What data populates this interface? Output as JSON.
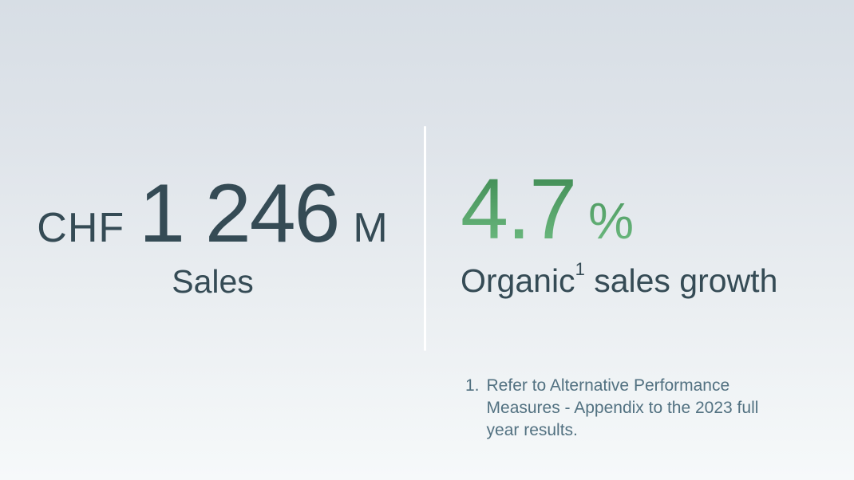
{
  "slide": {
    "background_top": "#d7dee5",
    "background_bottom": "#f6f9fa",
    "divider_color": "#ffffff",
    "primary_text_color": "#354b55",
    "accent_green_top": "#3e8952",
    "accent_green_bottom": "#6fbd82",
    "footnote_color": "#527181"
  },
  "stats": {
    "left": {
      "currency": "CHF",
      "value": "1 246",
      "unit": "M",
      "label": "Sales"
    },
    "right": {
      "value": "4.7",
      "unit": "%",
      "label_text": "Organic",
      "label_superscript": "1",
      "label_suffix": " sales growth"
    }
  },
  "footnote": {
    "marker": "1.",
    "lines": [
      "Refer to Alternative Performance",
      "Measures - Appendix to the 2023 full",
      "year results."
    ]
  }
}
